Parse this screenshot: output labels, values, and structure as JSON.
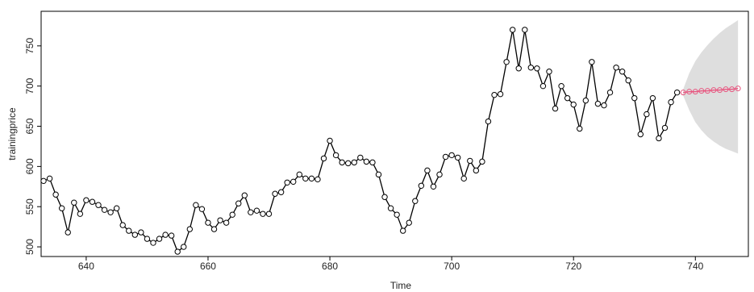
{
  "chart_data": {
    "type": "line",
    "x_label": "Time",
    "y_label": "trainingprice",
    "x": [
      633,
      634,
      635,
      636,
      637,
      638,
      639,
      640,
      641,
      642,
      643,
      644,
      645,
      646,
      647,
      648,
      649,
      650,
      651,
      652,
      653,
      654,
      655,
      656,
      657,
      658,
      659,
      660,
      661,
      662,
      663,
      664,
      665,
      666,
      667,
      668,
      669,
      670,
      671,
      672,
      673,
      674,
      675,
      676,
      677,
      678,
      679,
      680,
      681,
      682,
      683,
      684,
      685,
      686,
      687,
      688,
      689,
      690,
      691,
      692,
      693,
      694,
      695,
      696,
      697,
      698,
      699,
      700,
      701,
      702,
      703,
      704,
      705,
      706,
      707,
      708,
      709,
      710,
      711,
      712,
      713,
      714,
      715,
      716,
      717,
      718,
      719,
      720,
      721,
      722,
      723,
      724,
      725,
      726,
      727,
      728,
      729,
      730,
      731,
      732,
      733,
      734,
      735,
      736,
      737
    ],
    "values": [
      582,
      585,
      565,
      548,
      518,
      555,
      541,
      558,
      556,
      552,
      546,
      543,
      548,
      527,
      520,
      515,
      518,
      510,
      505,
      510,
      515,
      514,
      494,
      500,
      522,
      552,
      547,
      530,
      522,
      533,
      530,
      540,
      554,
      564,
      543,
      545,
      541,
      541,
      566,
      568,
      580,
      581,
      590,
      585,
      585,
      584,
      610,
      632,
      614,
      605,
      604,
      605,
      611,
      606,
      605,
      590,
      562,
      548,
      540,
      520,
      530,
      557,
      576,
      595,
      575,
      590,
      612,
      614,
      611,
      585,
      607,
      595,
      606,
      656,
      689,
      690,
      730,
      770,
      722,
      770,
      723,
      722,
      700,
      718,
      672,
      700,
      685,
      677,
      647,
      682,
      730,
      678,
      676,
      692,
      723,
      718,
      707,
      685,
      640,
      665,
      685,
      635,
      648,
      680,
      692
    ],
    "color": "#000000",
    "forecast": {
      "x": [
        738,
        739,
        740,
        741,
        742,
        743,
        744,
        745,
        746,
        747
      ],
      "values": [
        692,
        693,
        693,
        694,
        694,
        695,
        695,
        696,
        696,
        697
      ],
      "color": "#e8557f"
    },
    "interval": {
      "x": [
        738,
        739,
        740,
        741,
        742,
        743,
        744,
        745,
        746,
        747
      ],
      "lower": [
        688,
        670,
        655,
        645,
        637,
        631,
        626,
        622,
        619,
        616
      ],
      "upper": [
        696,
        716,
        731,
        742,
        751,
        759,
        766,
        772,
        777,
        782
      ],
      "color": "#d6d6d6"
    },
    "xlim": [
      632.6,
      748.7
    ],
    "ylim": [
      488,
      793
    ],
    "xticks": [
      640,
      660,
      680,
      700,
      720,
      740
    ],
    "yticks": [
      500,
      550,
      600,
      650,
      700,
      750
    ]
  }
}
